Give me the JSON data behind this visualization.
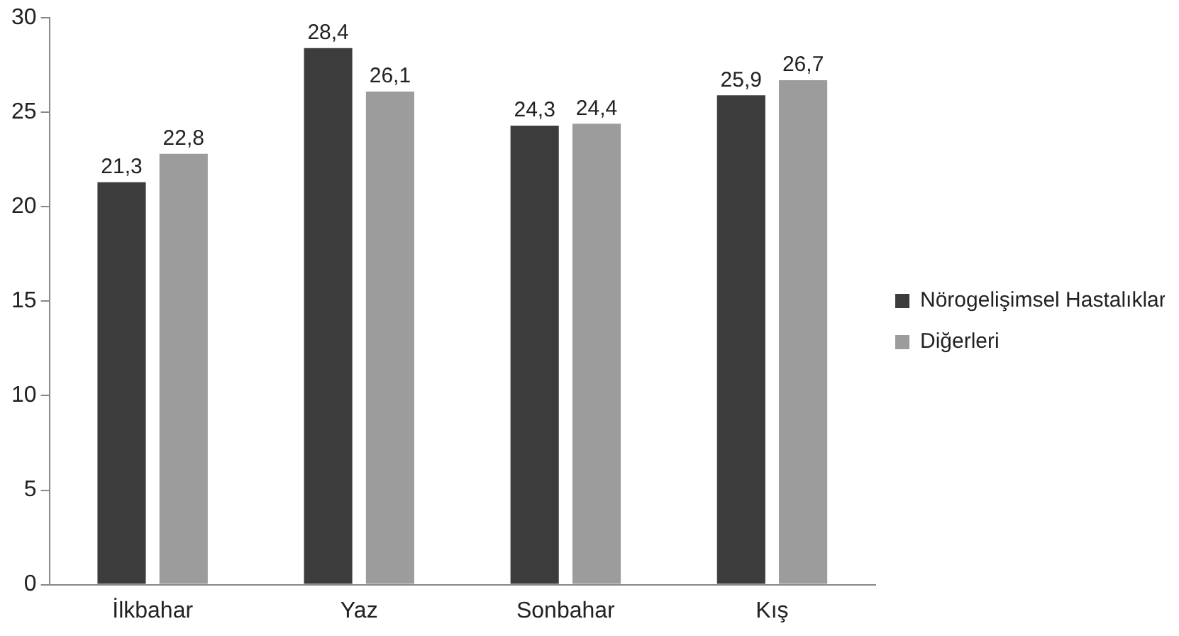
{
  "chart_data": {
    "type": "bar",
    "categories": [
      "İlkbahar",
      "Yaz",
      "Sonbahar",
      "Kış"
    ],
    "series": [
      {
        "name": "Nörogelişimsel Hastalıklar",
        "color": "#3c3c3c",
        "values": [
          21.3,
          28.4,
          24.3,
          25.9
        ],
        "value_labels": [
          "21,3",
          "28,4",
          "24,3",
          "25,9"
        ]
      },
      {
        "name": "Diğerleri",
        "color": "#9c9c9c",
        "values": [
          22.8,
          26.1,
          24.4,
          26.7
        ],
        "value_labels": [
          "22,8",
          "26,1",
          "24,4",
          "26,7"
        ]
      }
    ],
    "ylim": [
      0,
      30
    ],
    "yticks": [
      0,
      5,
      10,
      15,
      20,
      25,
      30
    ],
    "grid": false,
    "legend": "right"
  }
}
